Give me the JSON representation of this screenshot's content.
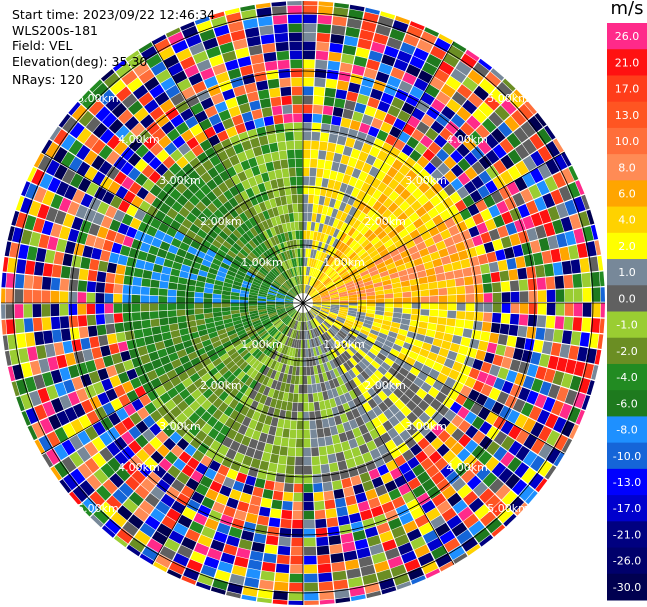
{
  "header": {
    "start_time": "Start time: 2023/09/22 12:46:34",
    "site": "WLS200s-181",
    "field": "Field: VEL",
    "elevation": "Elevation(deg): 35.30",
    "nrays": "NRays: 120"
  },
  "chart_data": {
    "type": "heatmap",
    "projection": "polar PPI",
    "title": "",
    "n_rays": 120,
    "range_rings": [
      {
        "label": "1.00km",
        "range_km": 1.0
      },
      {
        "label": "2.00km",
        "range_km": 2.0
      },
      {
        "label": "3.00km",
        "range_km": 3.0
      },
      {
        "label": "4.00km",
        "range_km": 4.0
      },
      {
        "label": "5.00km",
        "range_km": 5.0
      }
    ],
    "colorbar": {
      "unit": "m/s",
      "range": [
        -30.0,
        30.0
      ],
      "bins": [
        {
          "label": "26.0",
          "color": "#ff2a8a"
        },
        {
          "label": "21.0",
          "color": "#ff1111"
        },
        {
          "label": "17.0",
          "color": "#ff3d1a"
        },
        {
          "label": "13.0",
          "color": "#ff5522"
        },
        {
          "label": "10.0",
          "color": "#ff6e3a"
        },
        {
          "label": "8.0",
          "color": "#ff8b55"
        },
        {
          "label": "6.0",
          "color": "#ffa500"
        },
        {
          "label": "4.0",
          "color": "#ffd200"
        },
        {
          "label": "2.0",
          "color": "#ffff00"
        },
        {
          "label": "1.0",
          "color": "#778899"
        },
        {
          "label": "0.0",
          "color": "#606060"
        },
        {
          "label": "-1.0",
          "color": "#9acd32"
        },
        {
          "label": "-2.0",
          "color": "#6b8e23"
        },
        {
          "label": "-4.0",
          "color": "#228b22"
        },
        {
          "label": "-6.0",
          "color": "#1e7a1e"
        },
        {
          "label": "-8.0",
          "color": "#1e90ff"
        },
        {
          "label": "-10.0",
          "color": "#1565d8"
        },
        {
          "label": "-13.0",
          "color": "#0000ff"
        },
        {
          "label": "-17.0",
          "color": "#0000cd"
        },
        {
          "label": "-21.0",
          "color": "#000080"
        },
        {
          "label": "-26.0",
          "color": "#00006b"
        },
        {
          "label": "-30.0",
          "color": "#000050"
        }
      ]
    }
  }
}
